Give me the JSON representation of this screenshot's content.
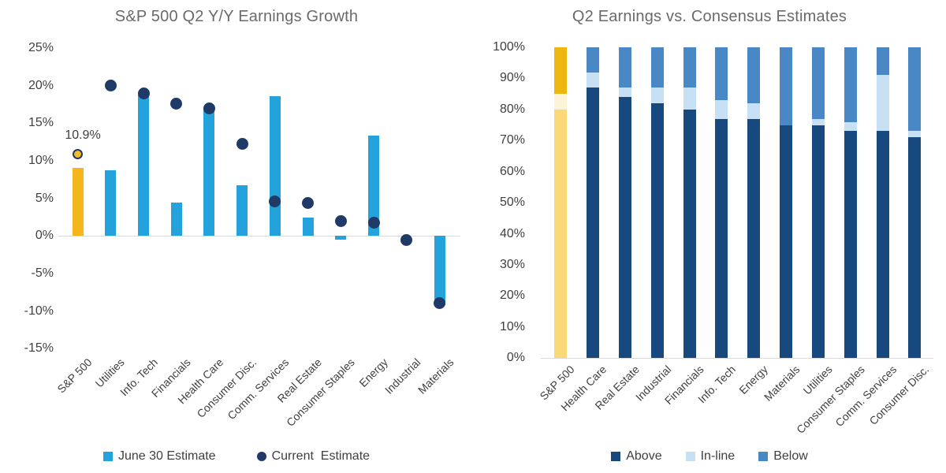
{
  "chart_data": [
    {
      "type": "bar",
      "title": "S&P 500 Q2 Y/Y Earnings Growth",
      "categories": [
        "S&P 500",
        "Utilities",
        "Info. Tech",
        "Financials",
        "Health Care",
        "Consumer Disc.",
        "Comm. Services",
        "Real Estate",
        "Consumer Staples",
        "Energy",
        "Industrial",
        "Materials"
      ],
      "series": [
        {
          "name": "June 30 Estimate",
          "type": "bar",
          "values": [
            9.0,
            8.7,
            18.8,
            4.4,
            16.8,
            6.7,
            18.6,
            2.4,
            -0.5,
            13.3,
            0.0,
            -9.2
          ]
        },
        {
          "name": "Current  Estimate",
          "type": "scatter",
          "values": [
            10.9,
            20.0,
            19.0,
            17.6,
            17.0,
            12.2,
            4.6,
            4.4,
            2.0,
            1.8,
            -0.5,
            -8.9
          ]
        }
      ],
      "y_axis": {
        "min": -15,
        "max": 25,
        "step": 5,
        "format": "percent"
      },
      "grid": "off",
      "legend_position": "bottom",
      "annotation": {
        "text": "10.9%",
        "category": "S&P 500",
        "series": "Current  Estimate"
      },
      "highlight_category": "S&P 500",
      "colors": {
        "bar": "#23a2db",
        "bar_highlight": "#f5b61b",
        "dot": "#1f3a67",
        "dot_highlight_fill": "#f2bd28",
        "axis_line": "#d9d9d9",
        "tick_text": "#404040",
        "title_text": "#6a6a6a"
      }
    },
    {
      "type": "bar",
      "subtype": "stacked-100",
      "title": "Q2 Earnings vs. Consensus Estimates",
      "categories": [
        "S&P 500",
        "Health Care",
        "Real Estate",
        "Industrial",
        "Financials",
        "Info. Tech",
        "Energy",
        "Materials",
        "Utilities",
        "Consumer Staples",
        "Comm. Services",
        "Consumer Disc."
      ],
      "series": [
        {
          "name": "Above",
          "values": [
            80,
            87,
            84,
            82,
            80,
            77,
            77,
            75,
            75,
            73,
            73,
            71
          ]
        },
        {
          "name": "In-line",
          "values": [
            5,
            5,
            3,
            5,
            7,
            6,
            5,
            0,
            2,
            3,
            18,
            2
          ]
        },
        {
          "name": "Below",
          "values": [
            15,
            8,
            13,
            13,
            13,
            17,
            18,
            25,
            23,
            24,
            9,
            27
          ]
        }
      ],
      "y_axis": {
        "min": 0,
        "max": 100,
        "step": 10,
        "format": "percent"
      },
      "grid": "off",
      "legend_position": "bottom",
      "highlight_category": "S&P 500",
      "colors": {
        "above": "#17497e",
        "inline": "#c7e0f4",
        "below": "#4a87c5",
        "above_highlight": "#fbd878",
        "inline_highlight": "#fdf3d7",
        "below_highlight": "#edb70f",
        "axis_line": "#d9d9d9",
        "tick_text": "#404040",
        "title_text": "#6a6a6a"
      }
    }
  ]
}
